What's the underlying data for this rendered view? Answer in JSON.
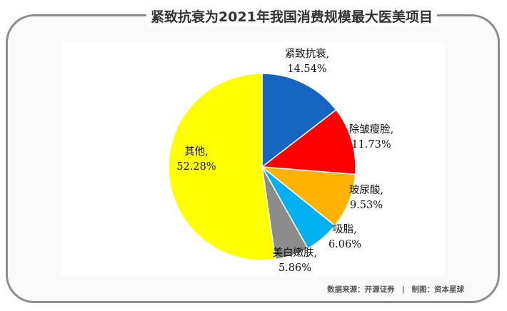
{
  "title": "紧致抗衰为2021年我国消费规模最大医美项目",
  "chart_data": {
    "type": "pie",
    "title": "紧致抗衰为2021年我国消费规模最大医美项目",
    "start_angle_deg": 0,
    "direction": "clockwise",
    "slices": [
      {
        "label": "紧致抗衰,",
        "percent_text": "14.54%",
        "value": 14.54,
        "color": "#1565c0"
      },
      {
        "label": "除皱瘦脸,",
        "percent_text": "11.73%",
        "value": 11.73,
        "color": "#ff0000"
      },
      {
        "label": "玻尿酸,",
        "percent_text": "9.53%",
        "value": 9.53,
        "color": "#ffb300"
      },
      {
        "label": "吸脂,",
        "percent_text": "6.06%",
        "value": 6.06,
        "color": "#00b0f0"
      },
      {
        "label": "美白嫩肤,",
        "percent_text": "5.86%",
        "value": 5.86,
        "color": "#8c8c8c"
      },
      {
        "label": "其他,",
        "percent_text": "52.28%",
        "value": 52.28,
        "color": "#ffff00"
      }
    ]
  },
  "footer": {
    "source": "数据来源：开源证券",
    "separator": "|",
    "maker": "制图：资本星球"
  }
}
